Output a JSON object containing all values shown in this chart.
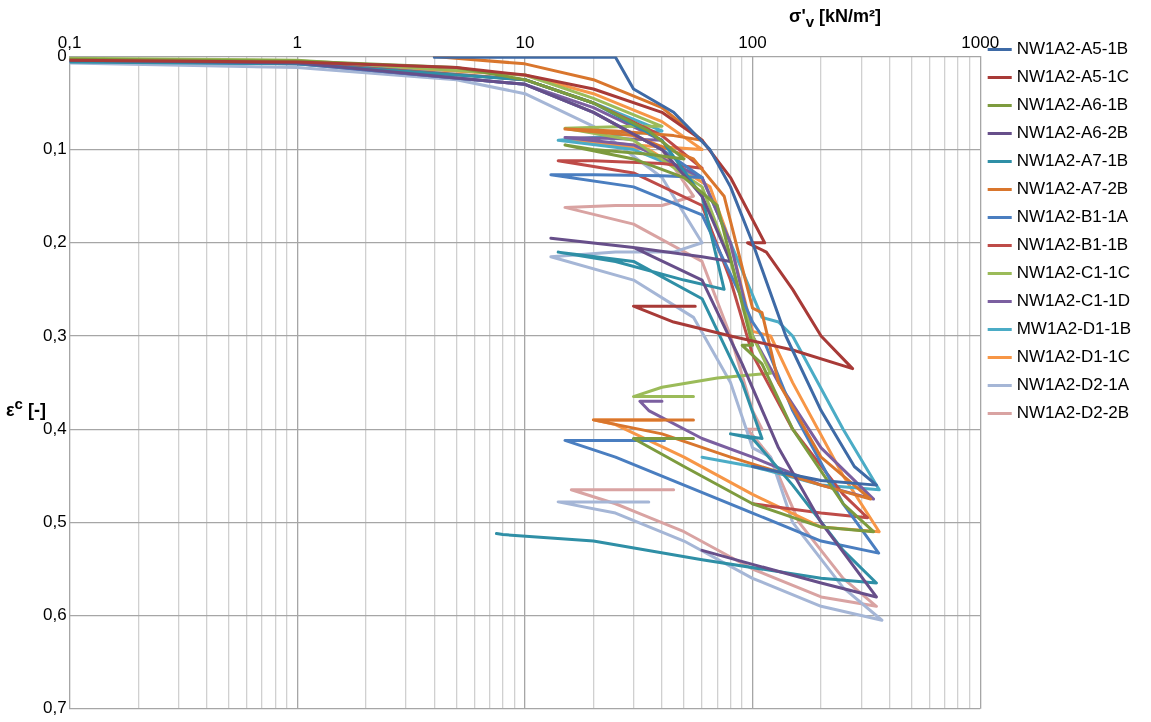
{
  "chart_data": {
    "type": "line",
    "xlabel": "σ'$_{v}$  [kN/m²]",
    "ylabel": "ε$^{c}$  [-]",
    "log": "x",
    "grid": true,
    "legend": "right",
    "xlim": [
      0.1,
      1000
    ],
    "xticks": [
      {
        "value": 0.1,
        "label": "0,1"
      },
      1,
      10,
      100,
      1000
    ],
    "ylim": [
      0.7,
      0
    ],
    "yticks": [
      0,
      {
        "value": 0.1,
        "label": "0,1"
      },
      {
        "value": 0.2,
        "label": "0,2"
      },
      {
        "value": 0.3,
        "label": "0,3"
      },
      {
        "value": 0.4,
        "label": "0,4"
      },
      {
        "value": 0.5,
        "label": "0,5"
      },
      {
        "value": 0.6,
        "label": "0,6"
      },
      {
        "value": 0.7,
        "label": "0,7"
      }
    ],
    "series": [
      {
        "name": "NW1A2-A5-1B",
        "color": "#3e6aa6",
        "x": [
          4,
          25,
          30,
          45,
          65,
          80,
          100,
          140,
          200,
          280,
          350,
          200,
          100
        ],
        "values": [
          0.001,
          0.001,
          0.035,
          0.06,
          0.1,
          0.14,
          0.2,
          0.3,
          0.38,
          0.44,
          0.46,
          0.455,
          0.44
        ]
      },
      {
        "name": "NW1A2-A5-1C",
        "color": "#a83a37",
        "x": [
          0.1,
          1,
          5,
          10,
          20,
          40,
          60,
          80,
          113,
          95,
          115,
          150,
          200,
          275,
          150,
          80,
          45,
          30,
          56
        ],
        "values": [
          0.004,
          0.006,
          0.012,
          0.02,
          0.035,
          0.06,
          0.09,
          0.13,
          0.2,
          0.2,
          0.21,
          0.25,
          0.3,
          0.335,
          0.315,
          0.3,
          0.285,
          0.268,
          0.268
        ]
      },
      {
        "name": "NW1A2-A6-1B",
        "color": "#7d9b3e",
        "x": [
          0.1,
          1,
          5,
          10,
          20,
          35,
          50,
          35,
          20,
          15,
          30,
          50,
          70,
          100,
          90,
          110,
          150,
          250,
          340,
          200,
          100,
          50,
          30,
          55
        ],
        "values": [
          0.003,
          0.005,
          0.012,
          0.025,
          0.05,
          0.08,
          0.11,
          0.105,
          0.1,
          0.095,
          0.11,
          0.13,
          0.16,
          0.31,
          0.31,
          0.33,
          0.4,
          0.48,
          0.51,
          0.505,
          0.48,
          0.44,
          0.41,
          0.41
        ]
      },
      {
        "name": "NW1A2-A6-2B",
        "color": "#674f8a",
        "x": [
          0.1,
          1,
          10,
          20,
          40,
          60,
          80,
          60,
          30,
          13,
          30,
          60,
          90,
          130,
          200,
          350,
          200,
          100,
          60
        ],
        "values": [
          0.004,
          0.007,
          0.03,
          0.06,
          0.1,
          0.15,
          0.22,
          0.215,
          0.205,
          0.195,
          0.205,
          0.24,
          0.33,
          0.42,
          0.5,
          0.58,
          0.565,
          0.545,
          0.53
        ]
      },
      {
        "name": "NW1A2-A7-1B",
        "color": "#2f8fa6",
        "x": [
          0.1,
          1,
          10,
          20,
          40,
          60,
          75,
          50,
          25,
          14,
          30,
          60,
          90,
          110,
          80,
          100,
          150,
          250,
          350,
          200,
          60,
          20,
          8,
          7.5
        ],
        "values": [
          0.006,
          0.008,
          0.025,
          0.05,
          0.09,
          0.15,
          0.25,
          0.24,
          0.22,
          0.21,
          0.22,
          0.26,
          0.35,
          0.41,
          0.405,
          0.41,
          0.46,
          0.53,
          0.565,
          0.56,
          0.54,
          0.52,
          0.513,
          0.512
        ]
      },
      {
        "name": "NW1A2-A7-2B",
        "color": "#d9762d",
        "x": [
          4,
          10,
          20,
          40,
          60,
          45,
          25,
          15,
          30,
          55,
          75,
          100,
          110,
          130,
          200,
          330,
          200,
          80,
          40,
          20,
          55
        ],
        "values": [
          0.0,
          0.008,
          0.025,
          0.055,
          0.09,
          0.085,
          0.08,
          0.078,
          0.085,
          0.11,
          0.15,
          0.27,
          0.275,
          0.35,
          0.43,
          0.475,
          0.46,
          0.43,
          0.405,
          0.39,
          0.39
        ]
      },
      {
        "name": "NW1A2-B1-1A",
        "color": "#4a7ec0",
        "x": [
          0.1,
          1,
          10,
          20,
          40,
          60,
          40,
          20,
          13,
          30,
          60,
          90,
          100,
          110,
          150,
          250,
          358,
          200,
          100,
          50,
          25,
          15,
          41
        ],
        "values": [
          0.005,
          0.008,
          0.03,
          0.06,
          0.1,
          0.13,
          0.128,
          0.127,
          0.127,
          0.14,
          0.17,
          0.26,
          0.285,
          0.3,
          0.38,
          0.48,
          0.533,
          0.52,
          0.49,
          0.46,
          0.43,
          0.412,
          0.412
        ]
      },
      {
        "name": "NW1A2-B1-1B",
        "color": "#be4b48",
        "x": [
          0.1,
          1,
          10,
          20,
          40,
          60,
          40,
          20,
          14,
          30,
          60,
          80,
          100,
          150,
          250,
          320,
          200,
          100
        ],
        "values": [
          0.004,
          0.007,
          0.025,
          0.05,
          0.085,
          0.12,
          0.115,
          0.112,
          0.112,
          0.125,
          0.16,
          0.24,
          0.32,
          0.4,
          0.47,
          0.495,
          0.49,
          0.48
        ]
      },
      {
        "name": "NW1A2-C1-1C",
        "color": "#9bbb59",
        "x": [
          0.1,
          1,
          10,
          20,
          40,
          30,
          15,
          30,
          60,
          80,
          100,
          120,
          70,
          40,
          30,
          55
        ],
        "values": [
          0.002,
          0.004,
          0.02,
          0.045,
          0.075,
          0.075,
          0.077,
          0.09,
          0.14,
          0.22,
          0.3,
          0.34,
          0.345,
          0.355,
          0.365,
          0.365
        ]
      },
      {
        "name": "NW1A2-C1-1D",
        "color": "#7b5fa0",
        "x": [
          0.1,
          1,
          10,
          20,
          40,
          25,
          15,
          30,
          60,
          80,
          100,
          130,
          200,
          340,
          200,
          100,
          60,
          35,
          32,
          40
        ],
        "values": [
          0.005,
          0.008,
          0.03,
          0.055,
          0.09,
          0.088,
          0.087,
          0.095,
          0.13,
          0.2,
          0.3,
          0.35,
          0.42,
          0.475,
          0.46,
          0.43,
          0.41,
          0.38,
          0.37,
          0.37
        ]
      },
      {
        "name": "MW1A2-D1-1B",
        "color": "#4bacc6",
        "x": [
          0.1,
          1,
          10,
          20,
          40,
          25,
          14,
          30,
          60,
          80,
          110,
          130,
          150,
          250,
          360,
          200,
          100,
          60
        ],
        "values": [
          0.003,
          0.006,
          0.025,
          0.05,
          0.08,
          0.085,
          0.09,
          0.1,
          0.13,
          0.2,
          0.28,
          0.285,
          0.3,
          0.4,
          0.465,
          0.46,
          0.44,
          0.43
        ]
      },
      {
        "name": "NW1A2-D1-1C",
        "color": "#f79646",
        "x": [
          0.1,
          1,
          10,
          20,
          40,
          60,
          30,
          16,
          35,
          65,
          80,
          100,
          120,
          150,
          250,
          360,
          200,
          100,
          50,
          25,
          20,
          40
        ],
        "values": [
          0.004,
          0.006,
          0.02,
          0.04,
          0.07,
          0.1,
          0.095,
          0.09,
          0.1,
          0.14,
          0.2,
          0.295,
          0.3,
          0.35,
          0.45,
          0.51,
          0.505,
          0.47,
          0.43,
          0.395,
          0.39,
          0.39
        ]
      },
      {
        "name": "NW1A2-D2-1A",
        "color": "#a5b6d6",
        "x": [
          0.1,
          1,
          5,
          10,
          20,
          40,
          60,
          45,
          25,
          13,
          30,
          55,
          80,
          100,
          120,
          150,
          250,
          370,
          200,
          100,
          50,
          25,
          14,
          35
        ],
        "values": [
          0.007,
          0.012,
          0.025,
          0.04,
          0.075,
          0.13,
          0.2,
          0.21,
          0.21,
          0.215,
          0.24,
          0.28,
          0.35,
          0.42,
          0.43,
          0.5,
          0.57,
          0.605,
          0.59,
          0.56,
          0.52,
          0.49,
          0.478,
          0.478
        ]
      },
      {
        "name": "NW1A2-D2-2B",
        "color": "#d9a3a2",
        "x": [
          10,
          20,
          40,
          55,
          40,
          25,
          15,
          30,
          60,
          80,
          100,
          110,
          95,
          120,
          160,
          250,
          350,
          200,
          100,
          50,
          25,
          16,
          45
        ],
        "values": [
          0.03,
          0.06,
          0.1,
          0.15,
          0.16,
          0.16,
          0.162,
          0.18,
          0.22,
          0.3,
          0.38,
          0.4,
          0.4,
          0.43,
          0.5,
          0.56,
          0.59,
          0.58,
          0.55,
          0.51,
          0.48,
          0.465,
          0.465
        ]
      }
    ]
  }
}
